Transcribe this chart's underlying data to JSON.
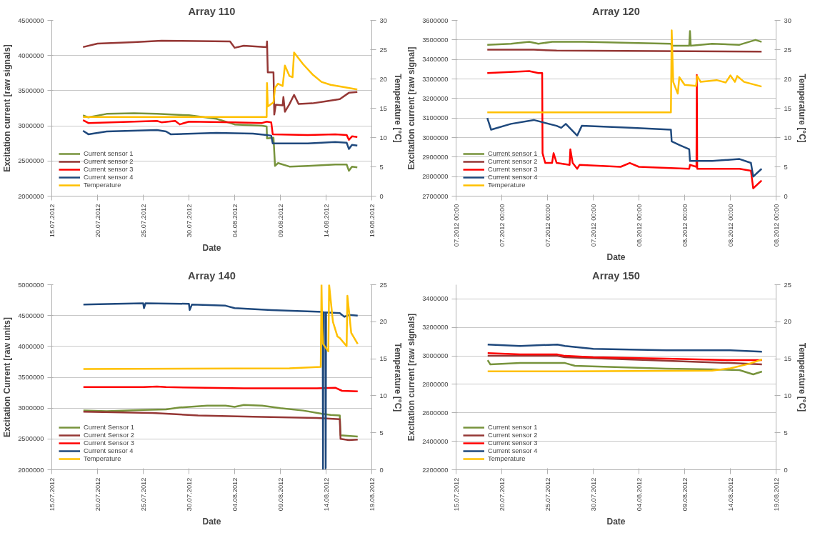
{
  "chart_data": [
    {
      "type": "line",
      "title": "Array 110",
      "xlabel": "Date",
      "ylabel": "Excitation current [raw signals]",
      "y2label": "Temperature [°C]",
      "grid": "y",
      "legend": "bottom left",
      "xlim": [
        "2012-07-15",
        "2012-08-19"
      ],
      "xticks": [
        {
          "value": "2012-07-15",
          "label": "15.07.2012"
        },
        {
          "value": "2012-07-20",
          "label": "20.07.2012"
        },
        {
          "value": "2012-07-25",
          "label": "25.07.2012"
        },
        {
          "value": "2012-07-30",
          "label": "30.07.2012"
        },
        {
          "value": "2012-08-04",
          "label": "04.08.2012"
        },
        {
          "value": "2012-08-09",
          "label": "09.08.2012"
        },
        {
          "value": "2012-08-14",
          "label": "14.08.2012"
        },
        {
          "value": "2012-08-19",
          "label": "19.08.2012"
        }
      ],
      "ylim": [
        2000000,
        4500000
      ],
      "yticks": [
        2000000,
        2500000,
        3000000,
        3500000,
        4000000,
        4500000
      ],
      "y2lim": [
        0,
        30
      ],
      "y2ticks": [
        0,
        5,
        10,
        15,
        20,
        25,
        30
      ],
      "series": [
        {
          "name": "Current sensor 1",
          "color": "#77933c",
          "x": [
            "2012-07-18T10:00",
            "2012-07-19T00:00",
            "2012-07-21T00:00",
            "2012-07-24T00:00",
            "2012-07-26T12:00",
            "2012-07-30T00:00",
            "2012-08-02T00:00",
            "2012-08-04T00:00",
            "2012-08-07T00:00",
            "2012-08-07T12:00",
            "2012-08-07T13:00",
            "2012-08-08T06:00",
            "2012-08-08T10:00",
            "2012-08-08T18:00",
            "2012-08-10T00:00",
            "2012-08-12T00:00",
            "2012-08-15T00:00",
            "2012-08-16T06:00",
            "2012-08-16T12:00",
            "2012-08-16T20:00",
            "2012-08-17T10:00"
          ],
          "values": [
            3150000,
            3120000,
            3170000,
            3180000,
            3170000,
            3150000,
            3100000,
            3020000,
            3000000,
            2990000,
            2820000,
            2830000,
            2430000,
            2470000,
            2420000,
            2430000,
            2450000,
            2450000,
            2360000,
            2420000,
            2410000
          ]
        },
        {
          "name": "Current sensor 2",
          "color": "#953735",
          "x": [
            "2012-07-18T10:00",
            "2012-07-20T00:00",
            "2012-07-24T00:00",
            "2012-07-27T00:00",
            "2012-08-03T12:00",
            "2012-08-04T00:00",
            "2012-08-05T00:00",
            "2012-08-07T12:00",
            "2012-08-07T13:00",
            "2012-08-07T15:00",
            "2012-08-08T06:00",
            "2012-08-08T08:00",
            "2012-08-08T12:00",
            "2012-08-09T06:00",
            "2012-08-09T08:00",
            "2012-08-09T12:00",
            "2012-08-10T00:00",
            "2012-08-10T12:00",
            "2012-08-11T00:00",
            "2012-08-12T12:00",
            "2012-08-14T00:00",
            "2012-08-15T12:00",
            "2012-08-16T12:00",
            "2012-08-17T10:00"
          ],
          "values": [
            4120000,
            4170000,
            4190000,
            4210000,
            4200000,
            4110000,
            4140000,
            4120000,
            4200000,
            3760000,
            3760000,
            3160000,
            3300000,
            3290000,
            3410000,
            3200000,
            3310000,
            3440000,
            3310000,
            3320000,
            3350000,
            3380000,
            3470000,
            3480000
          ]
        },
        {
          "name": "Current sensor 3",
          "color": "#ff0000",
          "x": [
            "2012-07-18T10:00",
            "2012-07-19T00:00",
            "2012-07-26T12:00",
            "2012-07-27T00:00",
            "2012-07-28T12:00",
            "2012-07-29T00:00",
            "2012-07-30T00:00",
            "2012-08-04T00:00",
            "2012-08-07T00:00",
            "2012-08-07T12:00",
            "2012-08-08T00:00",
            "2012-08-08T04:00",
            "2012-08-12T00:00",
            "2012-08-15T00:00",
            "2012-08-16T06:00",
            "2012-08-16T12:00",
            "2012-08-16T20:00",
            "2012-08-17T10:00"
          ],
          "values": [
            3080000,
            3040000,
            3070000,
            3050000,
            3070000,
            3020000,
            3060000,
            3050000,
            3040000,
            3060000,
            3050000,
            2880000,
            2870000,
            2880000,
            2870000,
            2800000,
            2850000,
            2840000
          ]
        },
        {
          "name": "Current sensor 4",
          "color": "#1f497d",
          "x": [
            "2012-07-18T10:00",
            "2012-07-19T00:00",
            "2012-07-21T00:00",
            "2012-07-26T12:00",
            "2012-07-27T12:00",
            "2012-07-28T00:00",
            "2012-08-02T00:00",
            "2012-08-06T00:00",
            "2012-08-07T12:00",
            "2012-08-08T00:00",
            "2012-08-08T04:00",
            "2012-08-12T00:00",
            "2012-08-15T00:00",
            "2012-08-16T06:00",
            "2012-08-16T12:00",
            "2012-08-16T20:00",
            "2012-08-17T10:00"
          ],
          "values": [
            2930000,
            2880000,
            2920000,
            2940000,
            2920000,
            2880000,
            2900000,
            2890000,
            2870000,
            2860000,
            2750000,
            2750000,
            2770000,
            2760000,
            2670000,
            2730000,
            2720000
          ]
        },
        {
          "name": "Temperature",
          "color": "#ffc000",
          "axis": "y2",
          "x": [
            "2012-07-18T10:00",
            "2012-08-07T12:00",
            "2012-08-07T13:00",
            "2012-08-07T15:00",
            "2012-08-08T06:00",
            "2012-08-08T10:00",
            "2012-08-08T18:00",
            "2012-08-09T06:00",
            "2012-08-09T12:00",
            "2012-08-10T00:00",
            "2012-08-10T08:00",
            "2012-08-10T12:00",
            "2012-08-11T12:00",
            "2012-08-12T12:00",
            "2012-08-13T12:00",
            "2012-08-14T12:00",
            "2012-08-16T00:00",
            "2012-08-17T10:00"
          ],
          "values": [
            13.5,
            13.5,
            19.3,
            15.3,
            16.0,
            18.5,
            19.2,
            18.8,
            22.3,
            20.5,
            20.3,
            24.5,
            22.5,
            20.8,
            19.5,
            19.0,
            18.6,
            18.2
          ]
        }
      ]
    },
    {
      "type": "line",
      "title": "Array 120",
      "xlabel": "Date",
      "ylabel": "Excitation current [raw signal]",
      "y2label": "Temperature [°C]",
      "grid": "y",
      "legend": "bottom left",
      "xlim": [
        "2012-07-15",
        "2012-08-19"
      ],
      "xticks": [
        {
          "value": "2012-07-15",
          "label": "07.2012 00:00"
        },
        {
          "value": "2012-07-20",
          "label": "07.2012 00:00"
        },
        {
          "value": "2012-07-25",
          "label": "07.2012 00:00"
        },
        {
          "value": "2012-07-30",
          "label": "07.2012 00:00"
        },
        {
          "value": "2012-08-04",
          "label": "08.2012 00:00"
        },
        {
          "value": "2012-08-09",
          "label": "08.2012 00:00"
        },
        {
          "value": "2012-08-14",
          "label": "08.2012 00:00"
        },
        {
          "value": "2012-08-19",
          "label": "08.2012 00:00"
        }
      ],
      "ylim": [
        2700000,
        3600000
      ],
      "yticks": [
        2700000,
        2800000,
        2900000,
        3000000,
        3100000,
        3200000,
        3300000,
        3400000,
        3500000,
        3600000
      ],
      "y2lim": [
        0,
        30
      ],
      "y2ticks": [
        0,
        5,
        10,
        15,
        20,
        25,
        30
      ],
      "series": [
        {
          "name": "Current sensor 1",
          "color": "#77933c",
          "x": [
            "2012-07-18T10:00",
            "2012-07-21T00:00",
            "2012-07-23T00:00",
            "2012-07-24T00:00",
            "2012-07-25T12:00",
            "2012-07-29T00:00",
            "2012-08-03T00:00",
            "2012-08-07T12:00",
            "2012-08-07T14:00",
            "2012-08-09T12:00",
            "2012-08-09T14:00",
            "2012-08-09T16:00",
            "2012-08-12T00:00",
            "2012-08-15T00:00",
            "2012-08-16T18:00",
            "2012-08-17T10:00"
          ],
          "values": [
            3475000,
            3480000,
            3490000,
            3480000,
            3490000,
            3490000,
            3485000,
            3480000,
            3470000,
            3470000,
            3545000,
            3470000,
            3480000,
            3475000,
            3500000,
            3490000
          ]
        },
        {
          "name": "Current sensor 2",
          "color": "#953735",
          "x": [
            "2012-07-18T10:00",
            "2012-07-23T12:00",
            "2012-07-26T00:00",
            "2012-08-17T10:00"
          ],
          "values": [
            3450000,
            3450000,
            3445000,
            3440000
          ]
        },
        {
          "name": "Current sensor 3",
          "color": "#ff0000",
          "x": [
            "2012-07-18T10:00",
            "2012-07-23T00:00",
            "2012-07-24T00:00",
            "2012-07-24T10:00",
            "2012-07-24T11:00",
            "2012-07-24T18:00",
            "2012-07-25T12:00",
            "2012-07-25T16:00",
            "2012-07-26T00:00",
            "2012-07-27T10:00",
            "2012-07-27T12:00",
            "2012-07-27T18:00",
            "2012-07-28T06:00",
            "2012-07-28T12:00",
            "2012-08-02T00:00",
            "2012-08-03T00:00",
            "2012-08-04T00:00",
            "2012-08-09T12:00",
            "2012-08-09T14:00",
            "2012-08-10T07:00",
            "2012-08-10T08:00",
            "2012-08-10T09:00",
            "2012-08-15T00:00",
            "2012-08-16T06:00",
            "2012-08-16T12:00",
            "2012-08-17T10:00"
          ],
          "values": [
            3330000,
            3340000,
            3330000,
            3330000,
            2920000,
            2870000,
            2870000,
            2920000,
            2870000,
            2860000,
            2940000,
            2870000,
            2840000,
            2860000,
            2850000,
            2870000,
            2850000,
            2840000,
            2860000,
            2850000,
            3320000,
            2840000,
            2840000,
            2830000,
            2740000,
            2780000
          ]
        },
        {
          "name": "Current sensor 4",
          "color": "#1f497d",
          "x": [
            "2012-07-18T10:00",
            "2012-07-18T20:00",
            "2012-07-21T00:00",
            "2012-07-23T12:00",
            "2012-07-26T00:00",
            "2012-07-26T12:00",
            "2012-07-27T00:00",
            "2012-07-28T06:00",
            "2012-07-28T18:00",
            "2012-08-03T00:00",
            "2012-08-07T12:00",
            "2012-08-07T14:00",
            "2012-08-08T12:00",
            "2012-08-09T12:00",
            "2012-08-09T14:00",
            "2012-08-12T00:00",
            "2012-08-15T00:00",
            "2012-08-16T06:00",
            "2012-08-16T12:00",
            "2012-08-17T10:00"
          ],
          "values": [
            3100000,
            3040000,
            3070000,
            3090000,
            3060000,
            3050000,
            3070000,
            3010000,
            3060000,
            3050000,
            3040000,
            2980000,
            2960000,
            2940000,
            2880000,
            2880000,
            2890000,
            2870000,
            2800000,
            2840000
          ]
        },
        {
          "name": "Temperature",
          "color": "#ffc000",
          "axis": "y2",
          "x": [
            "2012-07-18T10:00",
            "2012-08-07T12:00",
            "2012-08-07T14:00",
            "2012-08-07T18:00",
            "2012-08-08T06:00",
            "2012-08-08T10:00",
            "2012-08-09T00:00",
            "2012-08-10T06:00",
            "2012-08-10T09:00",
            "2012-08-10T18:00",
            "2012-08-12T12:00",
            "2012-08-13T12:00",
            "2012-08-14T00:00",
            "2012-08-14T12:00",
            "2012-08-14T18:00",
            "2012-08-15T12:00",
            "2012-08-17T10:00"
          ],
          "values": [
            14.3,
            14.3,
            28.3,
            19.5,
            17.5,
            20.3,
            19.0,
            18.8,
            20.5,
            19.5,
            19.8,
            19.4,
            20.6,
            19.5,
            20.5,
            19.5,
            18.7
          ]
        }
      ]
    },
    {
      "type": "line",
      "title": "Array 140",
      "xlabel": "Date",
      "ylabel": "Excitation Current [raw units]",
      "y2label": "Temperature [°C]",
      "grid": "y",
      "legend": "bottom left",
      "xlim": [
        "2012-07-15",
        "2012-08-19"
      ],
      "xticks": [
        {
          "value": "2012-07-15",
          "label": "15.07.2012"
        },
        {
          "value": "2012-07-20",
          "label": "20.07.2012"
        },
        {
          "value": "2012-07-25",
          "label": "25.07.2012"
        },
        {
          "value": "2012-07-30",
          "label": "30.07.2012"
        },
        {
          "value": "2012-08-04",
          "label": "04.08.2012"
        },
        {
          "value": "2012-08-09",
          "label": "09.08.2012"
        },
        {
          "value": "2012-08-14",
          "label": "14.08.2012"
        },
        {
          "value": "2012-08-19",
          "label": "19.08.2012"
        }
      ],
      "ylim": [
        2000000,
        5000000
      ],
      "yticks": [
        2000000,
        2500000,
        3000000,
        3500000,
        4000000,
        4500000,
        5000000
      ],
      "y2lim": [
        0,
        25
      ],
      "y2ticks": [
        0,
        5,
        10,
        15,
        20,
        25
      ],
      "series": [
        {
          "name": "Current Sensor 1",
          "color": "#77933c",
          "x": [
            "2012-07-18T11:00",
            "2012-07-21T00:00",
            "2012-07-25T00:00",
            "2012-07-27T12:00",
            "2012-07-29T00:00",
            "2012-08-01T00:00",
            "2012-08-03T00:00",
            "2012-08-04T00:00",
            "2012-08-05T00:00",
            "2012-08-07T00:00",
            "2012-08-09T00:00",
            "2012-08-11T12:00",
            "2012-08-13T12:00",
            "2012-08-14T12:00",
            "2012-08-15T12:00",
            "2012-08-15T14:00",
            "2012-08-17T11:00"
          ],
          "values": [
            2960000,
            2950000,
            2970000,
            2980000,
            3010000,
            3040000,
            3040000,
            3020000,
            3050000,
            3040000,
            3000000,
            2960000,
            2910000,
            2890000,
            2880000,
            2560000,
            2540000
          ]
        },
        {
          "name": "Current Sensor 2",
          "color": "#953735",
          "x": [
            "2012-07-18T11:00",
            "2012-07-26T00:00",
            "2012-07-27T12:00",
            "2012-07-31T00:00",
            "2012-08-06T00:00",
            "2012-08-13T00:00",
            "2012-08-15T12:00",
            "2012-08-15T14:00",
            "2012-08-16T12:00",
            "2012-08-17T11:00"
          ],
          "values": [
            2940000,
            2920000,
            2910000,
            2880000,
            2860000,
            2840000,
            2820000,
            2500000,
            2480000,
            2490000
          ]
        },
        {
          "name": "Current Sensor 3",
          "color": "#ff0000",
          "x": [
            "2012-07-18T11:00",
            "2012-07-25T00:00",
            "2012-07-26T12:00",
            "2012-07-27T12:00",
            "2012-08-05T00:00",
            "2012-08-13T00:00",
            "2012-08-15T00:00",
            "2012-08-15T18:00",
            "2012-08-17T11:00"
          ],
          "values": [
            3340000,
            3340000,
            3350000,
            3340000,
            3320000,
            3320000,
            3330000,
            3280000,
            3270000
          ]
        },
        {
          "name": "Current sensor 4",
          "color": "#1f497d",
          "x": [
            "2012-07-18T11:00",
            "2012-07-22T00:00",
            "2012-07-25T00:00",
            "2012-07-25T02:00",
            "2012-07-25T06:00",
            "2012-07-30T00:00",
            "2012-07-30T02:00",
            "2012-07-30T08:00",
            "2012-08-03T00:00",
            "2012-08-04T00:00",
            "2012-08-08T00:00",
            "2012-08-13T15:00",
            "2012-08-13T16:00",
            "2012-08-13T17:00",
            "2012-08-13T22:00",
            "2012-08-13T23:00",
            "2012-08-14T00:00",
            "2012-08-15T12:00",
            "2012-08-16T00:00",
            "2012-08-16T12:00",
            "2012-08-17T11:00"
          ],
          "values": [
            4680000,
            4690000,
            4700000,
            4620000,
            4700000,
            4690000,
            4590000,
            4680000,
            4660000,
            4620000,
            4590000,
            4560000,
            2000000,
            4550000,
            4550000,
            2000000,
            4550000,
            4540000,
            4480000,
            4510000,
            4500000
          ]
        },
        {
          "name": "Temperature",
          "color": "#ffc000",
          "axis": "y2",
          "x": [
            "2012-07-18T11:00",
            "2012-08-10T00:00",
            "2012-08-13T10:00",
            "2012-08-13T12:00",
            "2012-08-13T14:00",
            "2012-08-13T16:00",
            "2012-08-14T06:00",
            "2012-08-14T08:00",
            "2012-08-14T18:00",
            "2012-08-15T06:00",
            "2012-08-15T12:00",
            "2012-08-16T06:00",
            "2012-08-16T08:00",
            "2012-08-16T18:00",
            "2012-08-17T11:00"
          ],
          "values": [
            13.6,
            13.7,
            13.9,
            25.0,
            19.0,
            17.0,
            16.0,
            25.0,
            20.0,
            18.0,
            17.8,
            16.7,
            23.5,
            18.5,
            17.0
          ]
        }
      ]
    },
    {
      "type": "line",
      "title": "Array 150",
      "xlabel": "Date",
      "ylabel": "Excitation current [raw signals]",
      "y2label": "Temperature [°C]",
      "grid": "y",
      "legend": "bottom left",
      "xlim": [
        "2012-07-15",
        "2012-08-19"
      ],
      "xticks": [
        {
          "value": "2012-07-15",
          "label": "15.07.2012"
        },
        {
          "value": "2012-07-20",
          "label": "20.07.2012"
        },
        {
          "value": "2012-07-25",
          "label": "25.07.2012"
        },
        {
          "value": "2012-07-30",
          "label": "30.07.2012"
        },
        {
          "value": "2012-08-04",
          "label": "04.08.2012"
        },
        {
          "value": "2012-08-09",
          "label": "09.08.2012"
        },
        {
          "value": "2012-08-14",
          "label": "14.08.2012"
        },
        {
          "value": "2012-08-19",
          "label": "19.08.2012"
        }
      ],
      "ylim": [
        2200000,
        3500000
      ],
      "yticks": [
        2200000,
        2400000,
        2600000,
        2800000,
        3000000,
        3200000,
        3400000
      ],
      "y2lim": [
        0,
        25
      ],
      "y2ticks": [
        0,
        5,
        10,
        15,
        20,
        25
      ],
      "series": [
        {
          "name": "Current sensor 1",
          "color": "#77933c",
          "x": [
            "2012-07-18T11:00",
            "2012-07-18T18:00",
            "2012-07-22T00:00",
            "2012-07-26T02:00",
            "2012-07-26T22:00",
            "2012-07-28T00:00",
            "2012-08-02T00:00",
            "2012-08-07T00:00",
            "2012-08-12T00:00",
            "2012-08-15T00:00",
            "2012-08-16T12:00",
            "2012-08-17T11:00"
          ],
          "values": [
            2970000,
            2940000,
            2950000,
            2950000,
            2950000,
            2930000,
            2920000,
            2910000,
            2905000,
            2900000,
            2870000,
            2890000
          ]
        },
        {
          "name": "Current sensor 2",
          "color": "#953735",
          "x": [
            "2012-07-18T11:00",
            "2012-07-26T02:00",
            "2012-07-26T22:00",
            "2012-08-05T00:00",
            "2012-08-14T00:00",
            "2012-08-17T11:00"
          ],
          "values": [
            3000000,
            3000000,
            2990000,
            2970000,
            2950000,
            2940000
          ]
        },
        {
          "name": "Current sensor 3",
          "color": "#ff0000",
          "x": [
            "2012-07-18T11:00",
            "2012-07-22T00:00",
            "2012-07-26T02:00",
            "2012-07-26T22:00",
            "2012-07-30T00:00",
            "2012-08-07T00:00",
            "2012-08-14T00:00",
            "2012-08-17T11:00"
          ],
          "values": [
            3020000,
            3010000,
            3010000,
            3000000,
            2990000,
            2980000,
            2970000,
            2970000
          ]
        },
        {
          "name": "Current sensor 4",
          "color": "#1f497d",
          "x": [
            "2012-07-18T11:00",
            "2012-07-22T00:00",
            "2012-07-26T02:00",
            "2012-07-26T22:00",
            "2012-07-30T00:00",
            "2012-08-07T00:00",
            "2012-08-14T00:00",
            "2012-08-17T11:00"
          ],
          "values": [
            3080000,
            3070000,
            3080000,
            3070000,
            3050000,
            3040000,
            3040000,
            3030000
          ]
        },
        {
          "name": "Temperature",
          "color": "#ffc000",
          "axis": "y2",
          "x": [
            "2012-07-18T11:00",
            "2012-07-26T02:00",
            "2012-07-26T22:00",
            "2012-08-12T00:00",
            "2012-08-14T00:00",
            "2012-08-16T00:00",
            "2012-08-17T11:00"
          ],
          "values": [
            13.3,
            13.3,
            13.3,
            13.4,
            13.7,
            14.3,
            14.9
          ]
        }
      ]
    }
  ]
}
